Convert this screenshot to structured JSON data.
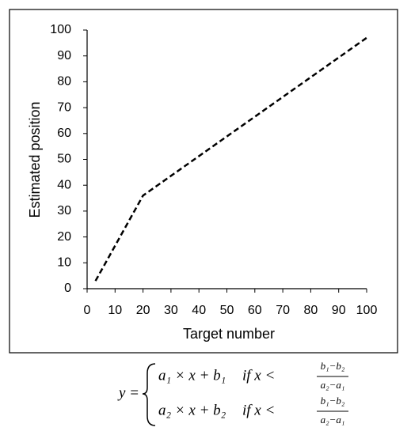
{
  "chart_data": {
    "type": "line",
    "x": [
      3,
      20,
      100
    ],
    "series": [
      {
        "name": null,
        "color": "#000000",
        "values": [
          3,
          36,
          97
        ]
      }
    ],
    "line_style": "dashed",
    "xlabel": "Target number",
    "ylabel": "Estimated position",
    "xlim": [
      0,
      100
    ],
    "ylim": [
      0,
      100
    ],
    "xticks": [
      0,
      10,
      20,
      30,
      40,
      50,
      60,
      70,
      80,
      90,
      100
    ],
    "yticks": [
      0,
      10,
      20,
      30,
      40,
      50,
      60,
      70,
      80,
      90,
      100
    ]
  },
  "equation": {
    "lhs": "y =",
    "cases": [
      {
        "expr": "a₁ × x + b₁",
        "condition": "if x <",
        "numerator": "b₁−b₂",
        "denominator": "a₂−a₁"
      },
      {
        "expr": "a₂ × x + b₂",
        "condition": "if x <",
        "numerator": "b₁−b₂",
        "denominator": "a₂−a₁"
      }
    ]
  }
}
